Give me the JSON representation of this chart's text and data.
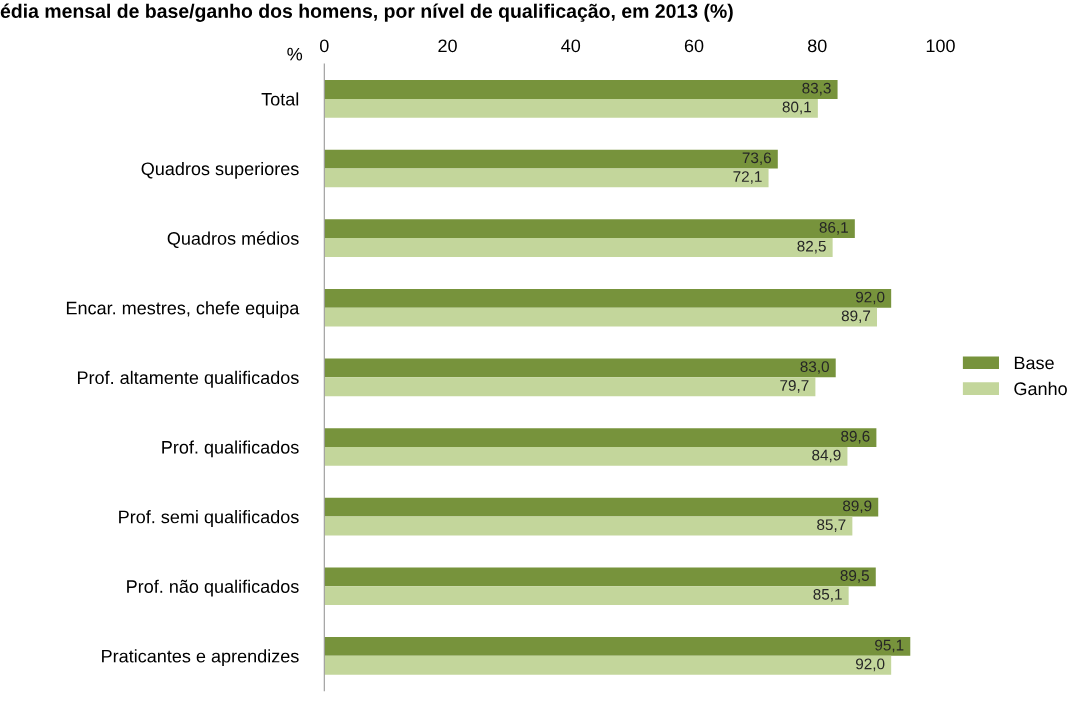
{
  "chart_data": {
    "type": "bar",
    "orientation": "horizontal",
    "title": "édia mensal de base/ganho dos homens, por nível de qualificação, em 2013 (%)",
    "xlabel": "%",
    "categories": [
      "Total",
      "Quadros superiores",
      "Quadros médios",
      "Encar. mestres, chefe equipa",
      "Prof. altamente qualificados",
      "Prof. qualificados",
      "Prof. semi qualificados",
      "Prof. não qualificados",
      "Praticantes e aprendizes"
    ],
    "series": [
      {
        "name": "Base",
        "color": "#77933c",
        "values": [
          83.3,
          73.6,
          86.1,
          92.0,
          83.0,
          89.6,
          89.9,
          89.5,
          95.1
        ],
        "value_labels": [
          "83,3",
          "73,6",
          "86,1",
          "92,0",
          "83,0",
          "89,6",
          "89,9",
          "89,5",
          "95,1"
        ]
      },
      {
        "name": "Ganho",
        "color": "#c3d69b",
        "values": [
          80.1,
          72.1,
          82.5,
          89.7,
          79.7,
          84.9,
          85.7,
          85.1,
          92.0
        ],
        "value_labels": [
          "80,1",
          "72,1",
          "82,5",
          "89,7",
          "79,7",
          "84,9",
          "85,7",
          "85,1",
          "92,0"
        ]
      }
    ],
    "xlim": [
      0,
      100
    ],
    "xticks": [
      0,
      20,
      40,
      60,
      80,
      100
    ],
    "grid": false,
    "legend": "right"
  }
}
